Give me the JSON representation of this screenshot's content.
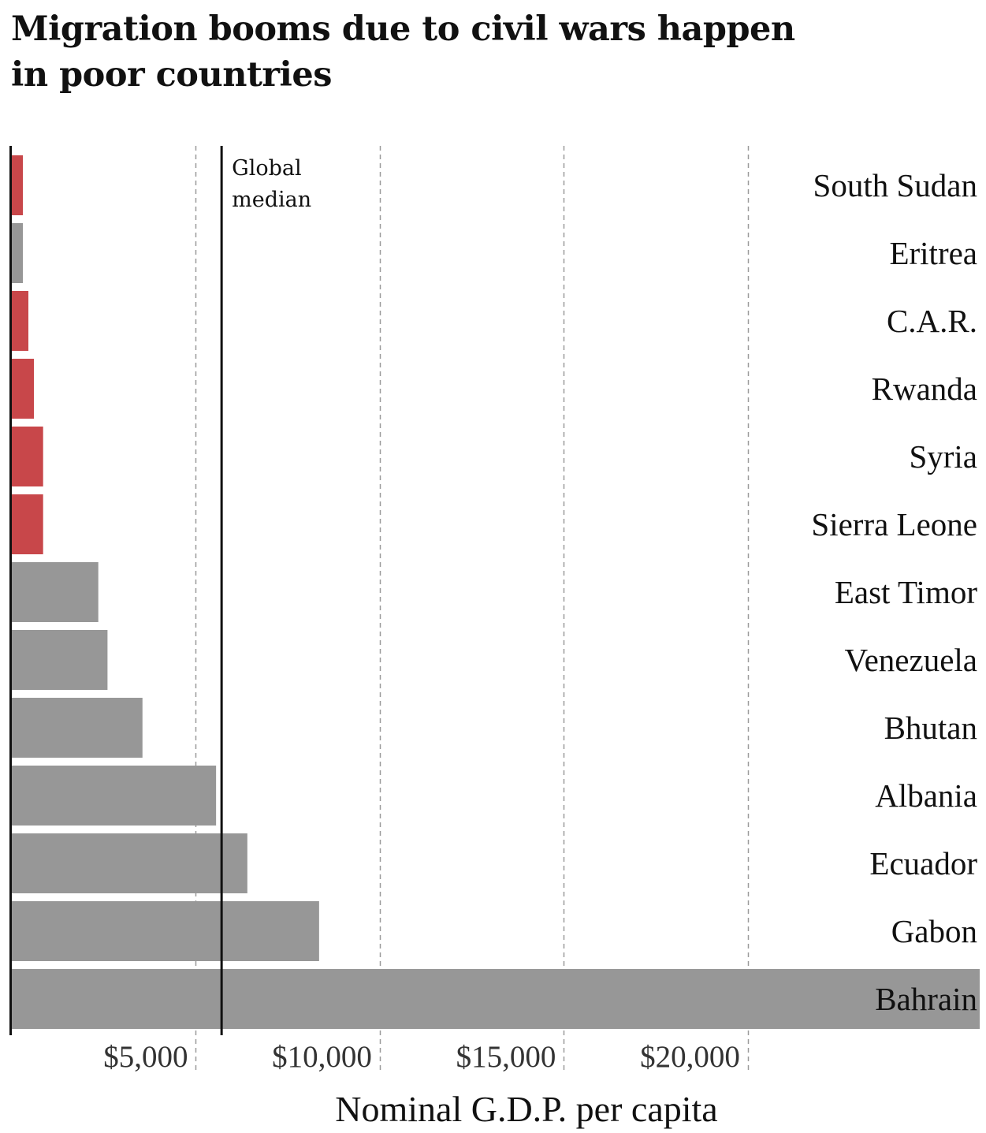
{
  "chart_data": {
    "type": "bar",
    "orientation": "horizontal",
    "title": "Migration booms due to civil wars happen in poor countries",
    "xlabel": "Nominal G.D.P. per capita",
    "categories": [
      "South Sudan",
      "Eritrea",
      "C.A.R.",
      "Rwanda",
      "Syria",
      "Sierra Leone",
      "East Timor",
      "Venezuela",
      "Bhutan",
      "Albania",
      "Ecuador",
      "Gabon",
      "Bahrain"
    ],
    "values": [
      300,
      300,
      450,
      600,
      850,
      850,
      2350,
      2600,
      3550,
      5550,
      6400,
      8350,
      26300
    ],
    "highlighted": [
      true,
      false,
      true,
      true,
      true,
      true,
      false,
      false,
      false,
      false,
      false,
      false,
      false
    ],
    "xlim": [
      0,
      26300
    ],
    "xticks": [
      5000,
      10000,
      15000,
      20000
    ],
    "xtick_labels": [
      "$5,000",
      "$10,000",
      "$15,000",
      "$20,000"
    ],
    "grid": "vertical dashed",
    "reference_line": {
      "label": "Global median",
      "value": 5700
    },
    "colors": {
      "highlight": "#c8474a",
      "default": "#979797",
      "grid": "#9a9a9a",
      "axis": "#111111"
    }
  }
}
